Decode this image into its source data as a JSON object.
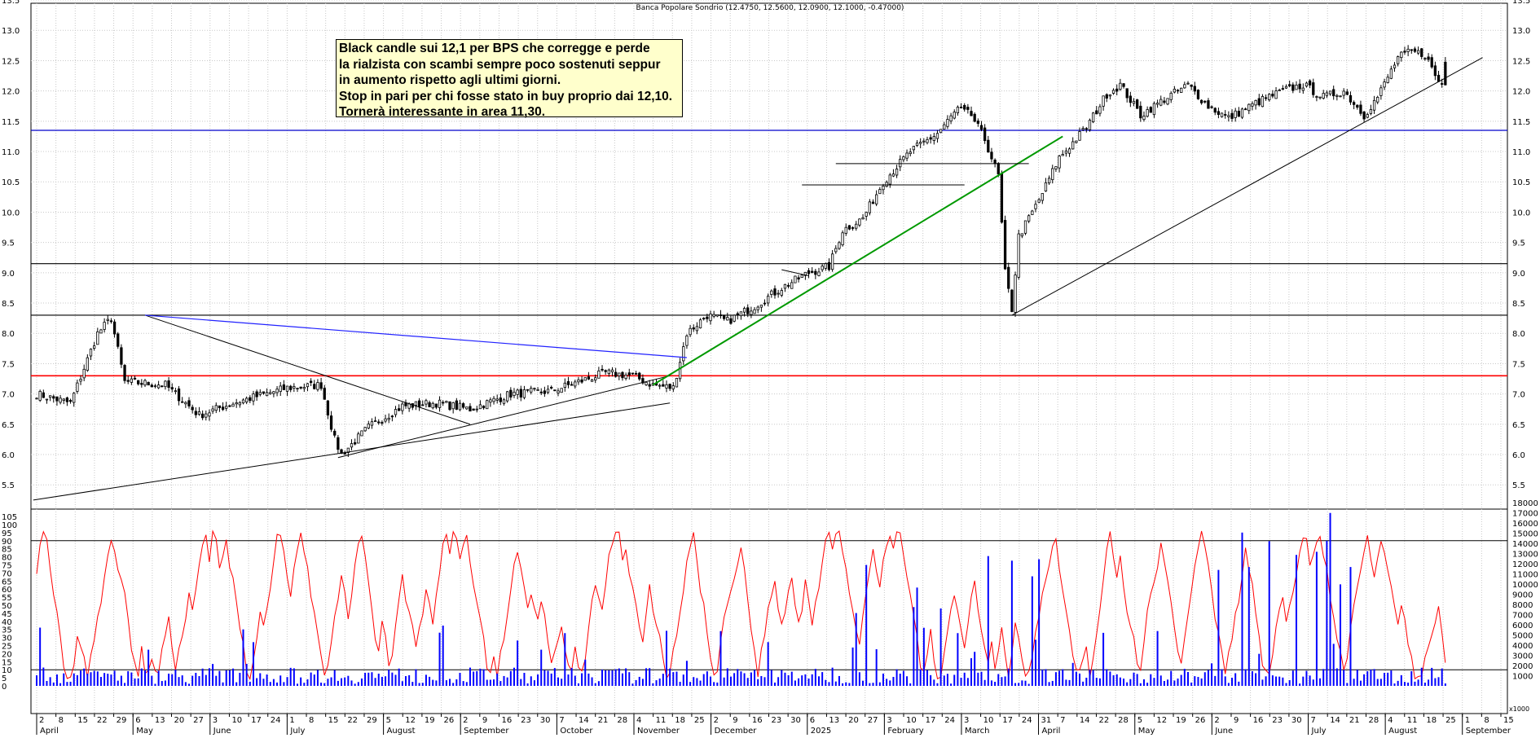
{
  "chart_data": {
    "type": "candlestick",
    "title": "Banca Popolare Sondrio (12.4750, 12.5600, 12.0900, 12.1000, -0.47000)",
    "annotation": [
      "Black candle sui 12,1 per BPS che corregge e perde",
      "la rialzista con scambi sempre poco sostenuti seppur",
      "in aumento rispetto agli ultimi giorni.",
      "Stop in pari per chi fosse stato in buy proprio dai 12,10.",
      "Tornerà interessante in area 11,30."
    ],
    "price_panel": {
      "ylim": [
        5.1,
        13.5
      ],
      "yticks": [
        "5.5",
        "6.0",
        "6.5",
        "7.0",
        "7.5",
        "8.0",
        "8.5",
        "9.0",
        "9.5",
        "10.0",
        "10.5",
        "11.0",
        "11.5",
        "12.0",
        "12.5",
        "13.0",
        "13.5"
      ],
      "anchors": [
        [
          0,
          7.0
        ],
        [
          10,
          6.85
        ],
        [
          18,
          8.0
        ],
        [
          22,
          8.25
        ],
        [
          26,
          7.2
        ],
        [
          38,
          7.15
        ],
        [
          48,
          6.65
        ],
        [
          58,
          6.85
        ],
        [
          74,
          7.1
        ],
        [
          84,
          7.15
        ],
        [
          88,
          6.25
        ],
        [
          90,
          6.0
        ],
        [
          98,
          6.45
        ],
        [
          108,
          6.8
        ],
        [
          118,
          6.85
        ],
        [
          128,
          6.75
        ],
        [
          140,
          7.0
        ],
        [
          152,
          7.05
        ],
        [
          160,
          7.2
        ],
        [
          168,
          7.35
        ],
        [
          176,
          7.3
        ],
        [
          182,
          7.15
        ],
        [
          188,
          7.1
        ],
        [
          192,
          8.0
        ],
        [
          198,
          8.3
        ],
        [
          204,
          8.2
        ],
        [
          212,
          8.45
        ],
        [
          220,
          8.75
        ],
        [
          228,
          9.0
        ],
        [
          234,
          9.1
        ],
        [
          238,
          9.7
        ],
        [
          244,
          9.9
        ],
        [
          250,
          10.5
        ],
        [
          258,
          11.0
        ],
        [
          266,
          11.3
        ],
        [
          272,
          11.7
        ],
        [
          276,
          11.6
        ],
        [
          280,
          11.2
        ],
        [
          284,
          10.6
        ],
        [
          286,
          9.0
        ],
        [
          288,
          8.4
        ],
        [
          290,
          9.6
        ],
        [
          296,
          10.2
        ],
        [
          302,
          10.9
        ],
        [
          310,
          11.4
        ],
        [
          316,
          11.95
        ],
        [
          320,
          12.1
        ],
        [
          326,
          11.6
        ],
        [
          334,
          11.9
        ],
        [
          340,
          12.1
        ],
        [
          346,
          11.75
        ],
        [
          352,
          11.55
        ],
        [
          360,
          11.8
        ],
        [
          368,
          12.0
        ],
        [
          374,
          12.1
        ],
        [
          380,
          11.9
        ],
        [
          386,
          12.0
        ],
        [
          392,
          11.6
        ],
        [
          396,
          11.9
        ],
        [
          402,
          12.55
        ],
        [
          406,
          12.65
        ],
        [
          410,
          12.6
        ],
        [
          414,
          12.15
        ],
        [
          416,
          12.1
        ]
      ],
      "horizontal_levels": [
        {
          "value": 7.3,
          "color": "#ff0000"
        },
        {
          "value": 8.3,
          "color": "#000000"
        },
        {
          "value": 9.15,
          "color": "#000000"
        },
        {
          "value": 11.35,
          "color": "#0000cc"
        }
      ]
    },
    "oscillator_panel": {
      "ylim": [
        0,
        105
      ],
      "yticks": [
        "0",
        "5",
        "10",
        "15",
        "20",
        "25",
        "30",
        "35",
        "40",
        "45",
        "50",
        "55",
        "60",
        "65",
        "70",
        "75",
        "80",
        "85",
        "90",
        "95",
        "100",
        "105"
      ],
      "levels": [
        10,
        90
      ]
    },
    "volume_axis": {
      "ticks": [
        "1000",
        "2000",
        "3000",
        "4000",
        "5000",
        "6000",
        "7000",
        "8000",
        "9000",
        "10000",
        "11000",
        "12000",
        "13000",
        "14000",
        "15000",
        "16000",
        "17000",
        "18000"
      ],
      "multiplier_label": "x1000"
    },
    "x_axis": {
      "day_labels": [
        "2",
        "8",
        "15",
        "22",
        "29",
        "6",
        "13",
        "20",
        "27",
        "3",
        "10",
        "17",
        "24",
        "1",
        "8",
        "15",
        "22",
        "29",
        "5",
        "12",
        "19",
        "26",
        "2",
        "9",
        "16",
        "23",
        "30",
        "7",
        "14",
        "21",
        "28",
        "4",
        "11",
        "18",
        "25",
        "2",
        "9",
        "16",
        "23",
        "30",
        "6",
        "13",
        "20",
        "27",
        "3",
        "10",
        "17",
        "24",
        "3",
        "10",
        "17",
        "24",
        "31",
        "7",
        "14",
        "22",
        "28",
        "5",
        "12",
        "19",
        "26",
        "2",
        "9",
        "16",
        "23",
        "30",
        "7",
        "14",
        "21",
        "28",
        "4",
        "11",
        "18",
        "25",
        "1",
        "8",
        "15"
      ],
      "month_labels": [
        "April",
        "May",
        "June",
        "July",
        "August",
        "September",
        "October",
        "November",
        "December",
        "2025",
        "February",
        "March",
        "April",
        "May",
        "June",
        "July",
        "August",
        "September"
      ]
    },
    "colors": {
      "price_up": "#000000",
      "price_down": "#000000",
      "oscillator": "#ff0000",
      "volume": "#0000ff",
      "green_trend": "#009900",
      "blue_trend": "#2222ff"
    }
  }
}
